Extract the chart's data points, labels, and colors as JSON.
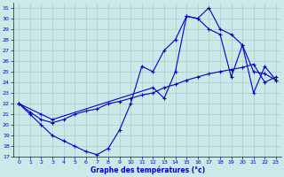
{
  "title": "Graphe des températures (°c)",
  "bg_color": "#cce8e8",
  "grid_color": "#aacccc",
  "line_color": "#0000cc",
  "xlim": [
    -0.5,
    23.5
  ],
  "ylim": [
    17,
    31.5
  ],
  "yticks": [
    17,
    18,
    19,
    20,
    21,
    22,
    23,
    24,
    25,
    26,
    27,
    28,
    29,
    30,
    31
  ],
  "xticks": [
    0,
    1,
    2,
    3,
    4,
    5,
    6,
    7,
    8,
    9,
    10,
    11,
    12,
    13,
    14,
    15,
    16,
    17,
    18,
    19,
    20,
    21,
    22,
    23
  ],
  "series1_x": [
    0,
    1,
    2,
    3,
    4,
    5,
    6,
    7,
    8,
    9,
    10,
    11,
    12,
    13,
    14,
    15,
    16,
    17,
    18,
    19,
    20,
    21,
    22,
    23
  ],
  "series1_y": [
    22.0,
    21.0,
    20.0,
    19.0,
    18.5,
    18.0,
    17.5,
    17.2,
    17.8,
    19.5,
    22.0,
    25.5,
    25.0,
    27.0,
    28.0,
    30.2,
    30.0,
    31.0,
    29.0,
    28.5,
    27.5,
    25.0,
    24.8,
    24.2
  ],
  "series2_x": [
    0,
    1,
    2,
    3,
    4,
    5,
    6,
    7,
    8,
    9,
    10,
    11,
    12,
    13,
    14,
    15,
    16,
    17,
    18,
    19,
    20,
    21,
    22,
    23
  ],
  "series2_y": [
    22.0,
    21.2,
    20.5,
    20.2,
    20.5,
    21.0,
    21.3,
    21.5,
    22.0,
    22.2,
    22.5,
    22.8,
    23.0,
    23.5,
    23.8,
    24.2,
    24.5,
    24.8,
    25.0,
    25.2,
    25.4,
    25.7,
    24.0,
    24.5
  ],
  "series3_x": [
    0,
    2,
    3,
    12,
    13,
    14,
    15,
    16,
    17,
    18,
    19,
    20,
    21,
    22,
    23
  ],
  "series3_y": [
    22.0,
    21.0,
    20.5,
    23.5,
    22.5,
    25.0,
    30.2,
    30.0,
    29.0,
    28.5,
    24.5,
    27.5,
    23.0,
    25.5,
    24.2
  ]
}
